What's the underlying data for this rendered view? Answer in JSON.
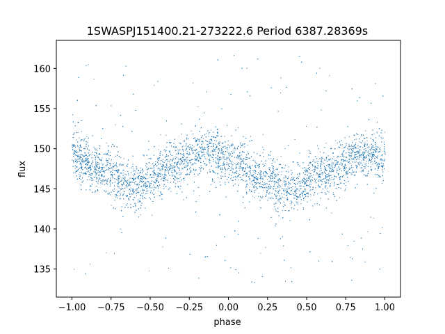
{
  "chart_data": {
    "type": "scatter",
    "title": "1SWASPJ151400.21-273222.6 Period 6387.28369s",
    "xlabel": "phase",
    "ylabel": "flux",
    "xlim": [
      -1.1,
      1.1
    ],
    "ylim": [
      131.5,
      163.5
    ],
    "xticks": [
      -1.0,
      -0.75,
      -0.5,
      -0.25,
      0.0,
      0.25,
      0.5,
      0.75,
      1.0
    ],
    "xtick_labels": [
      "−1.00",
      "−0.75",
      "−0.50",
      "−0.25",
      "0.00",
      "0.25",
      "0.50",
      "0.75",
      "1.00"
    ],
    "yticks": [
      135,
      140,
      145,
      150,
      155,
      160
    ],
    "ytick_labels": [
      "135",
      "140",
      "145",
      "150",
      "155",
      "160"
    ],
    "grid": false,
    "point_color": "#1f77b4",
    "trend": {
      "x": [
        -1.0,
        -0.85,
        -0.6,
        -0.35,
        -0.15,
        0.05,
        0.2,
        0.4,
        0.6,
        0.85,
        1.0
      ],
      "y": [
        149.2,
        147.8,
        145.3,
        147.9,
        149.8,
        148.3,
        146.5,
        145.0,
        146.8,
        149.3,
        149.2
      ]
    },
    "scatter_spread": 1.5,
    "outlier_range": [
      133,
      162
    ]
  }
}
